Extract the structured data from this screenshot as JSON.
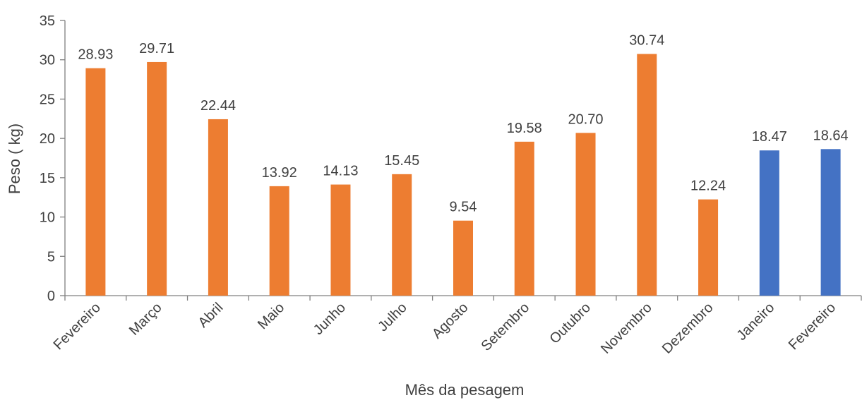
{
  "chart_data": {
    "type": "bar",
    "title": "",
    "xlabel": "Mês da pesagem",
    "ylabel": "Peso ( kg)",
    "ylim": [
      0,
      35
    ],
    "yticks": [
      0,
      5,
      10,
      15,
      20,
      25,
      30,
      35
    ],
    "grid": false,
    "legend": "none",
    "categories": [
      "Fevereiro",
      "Março",
      "Abril",
      "Maio",
      "Junho",
      "Julho",
      "Agosto",
      "Setembro",
      "Outubro",
      "Novembro",
      "Dezembro",
      "Janeiro",
      "Fevereiro"
    ],
    "values": [
      28.93,
      29.71,
      22.44,
      13.92,
      14.13,
      15.45,
      9.54,
      19.58,
      20.7,
      30.74,
      12.24,
      18.47,
      18.64
    ],
    "value_labels": [
      "28.93",
      "29.71",
      "22.44",
      "13.92",
      "14.13",
      "15.45",
      "9.54",
      "19.58",
      "20.70",
      "30.74",
      "12.24",
      "18.47",
      "18.64"
    ],
    "bar_colors": [
      "#ED7D31",
      "#ED7D31",
      "#ED7D31",
      "#ED7D31",
      "#ED7D31",
      "#ED7D31",
      "#ED7D31",
      "#ED7D31",
      "#ED7D31",
      "#ED7D31",
      "#ED7D31",
      "#4472C4",
      "#4472C4"
    ]
  },
  "colors": {
    "axis": "#808080",
    "text": "#404040"
  }
}
